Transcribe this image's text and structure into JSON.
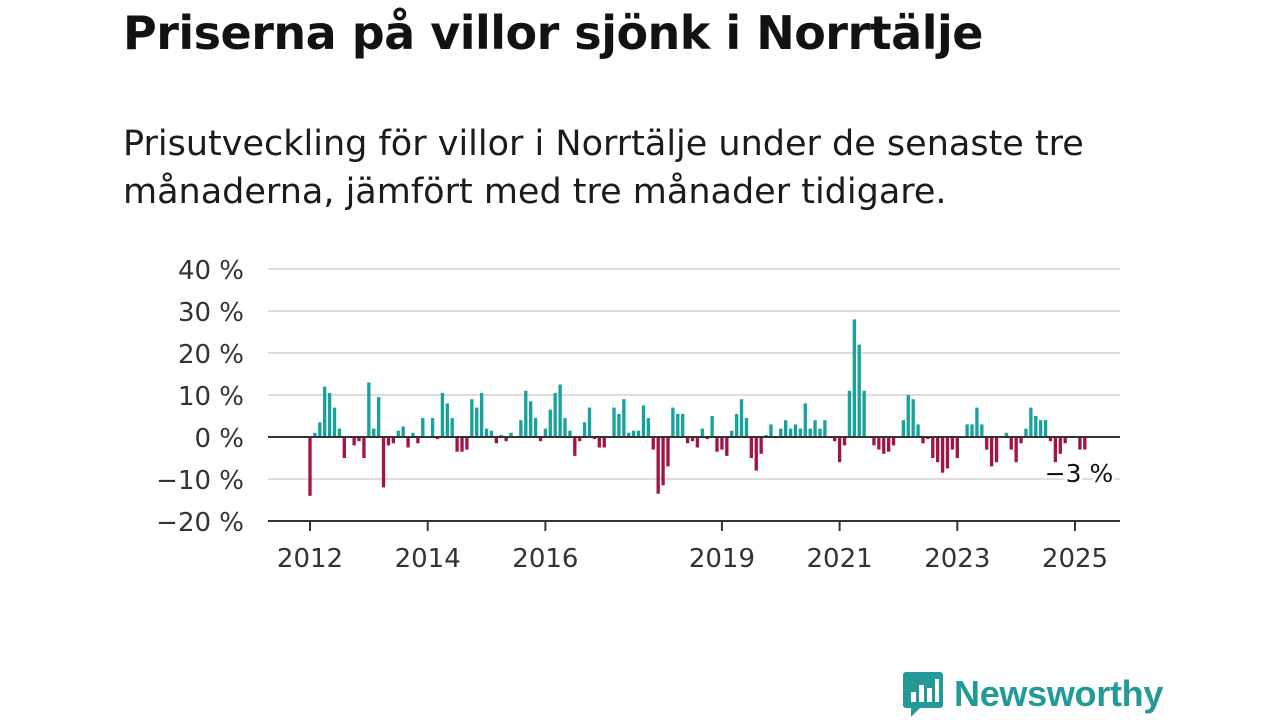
{
  "page": {
    "title": "Priserna på villor sjönk i Norrtälje",
    "subtitle": "Prisutveckling för villor i Norrtälje under de senaste tre månaderna, jämfört med tre månader tidigare.",
    "brand": "Newsworthy"
  },
  "colors": {
    "positive": "#17a39c",
    "negative": "#a31446",
    "brand": "#239a97",
    "axis": "#333333",
    "grid": "#dddddd"
  },
  "chart_data": {
    "type": "bar",
    "ylim": [
      -20,
      40
    ],
    "y_ticks": [
      40,
      30,
      20,
      10,
      0,
      -10,
      -20
    ],
    "y_tick_labels": [
      "40 %",
      "30 %",
      "20 %",
      "10 %",
      "0 %",
      "−10 %",
      "−20 %"
    ],
    "x_ticks": [
      "2012",
      "2014",
      "2016",
      "2019",
      "2021",
      "2023",
      "2025"
    ],
    "x_start": "2012-01",
    "last_label": "−3 %",
    "grid": true,
    "values": [
      -14,
      1,
      3.5,
      12,
      10.5,
      7,
      2,
      -5,
      0,
      -2,
      -1,
      -5,
      13,
      2,
      9.5,
      -12,
      -2,
      -1.5,
      1.5,
      2.5,
      -2.5,
      1,
      -1.5,
      4.5,
      0,
      4.5,
      -0.5,
      10.5,
      8,
      4.5,
      -3.5,
      -3.5,
      -3,
      9,
      7,
      10.5,
      2,
      1.5,
      -1.5,
      0.5,
      -1,
      1,
      0,
      4,
      11,
      8.5,
      4.5,
      -1,
      2,
      6.5,
      10.5,
      12.5,
      4.5,
      1.5,
      -4.5,
      -1,
      3.5,
      7,
      -0.5,
      -2.5,
      -2.5,
      0,
      7,
      5.5,
      9,
      1,
      1.5,
      1.5,
      7.5,
      4.5,
      -3,
      -13.5,
      -11.5,
      -7,
      7,
      5.5,
      5.5,
      -1.5,
      -1,
      -2.5,
      2,
      -0.5,
      5,
      -3.5,
      -3,
      -4.5,
      1.5,
      5.5,
      9,
      4.5,
      -5,
      -8,
      -4,
      0.5,
      3,
      0,
      2,
      4,
      2,
      3,
      2,
      8,
      2,
      4,
      2,
      4,
      0,
      -1,
      -6,
      -2,
      11,
      28,
      22,
      11,
      0,
      -2,
      -3,
      -4,
      -3.5,
      -2,
      0,
      4,
      10,
      9,
      3,
      -1.5,
      -0.5,
      -5,
      -6,
      -8.5,
      -7.5,
      -3,
      -5,
      0,
      3,
      3,
      7,
      3,
      -3,
      -7,
      -6,
      0,
      1,
      -3,
      -6,
      -1.5,
      2,
      7,
      5,
      4,
      4,
      -1,
      -6,
      -4,
      -1.5,
      0,
      0,
      -3,
      -3
    ]
  }
}
